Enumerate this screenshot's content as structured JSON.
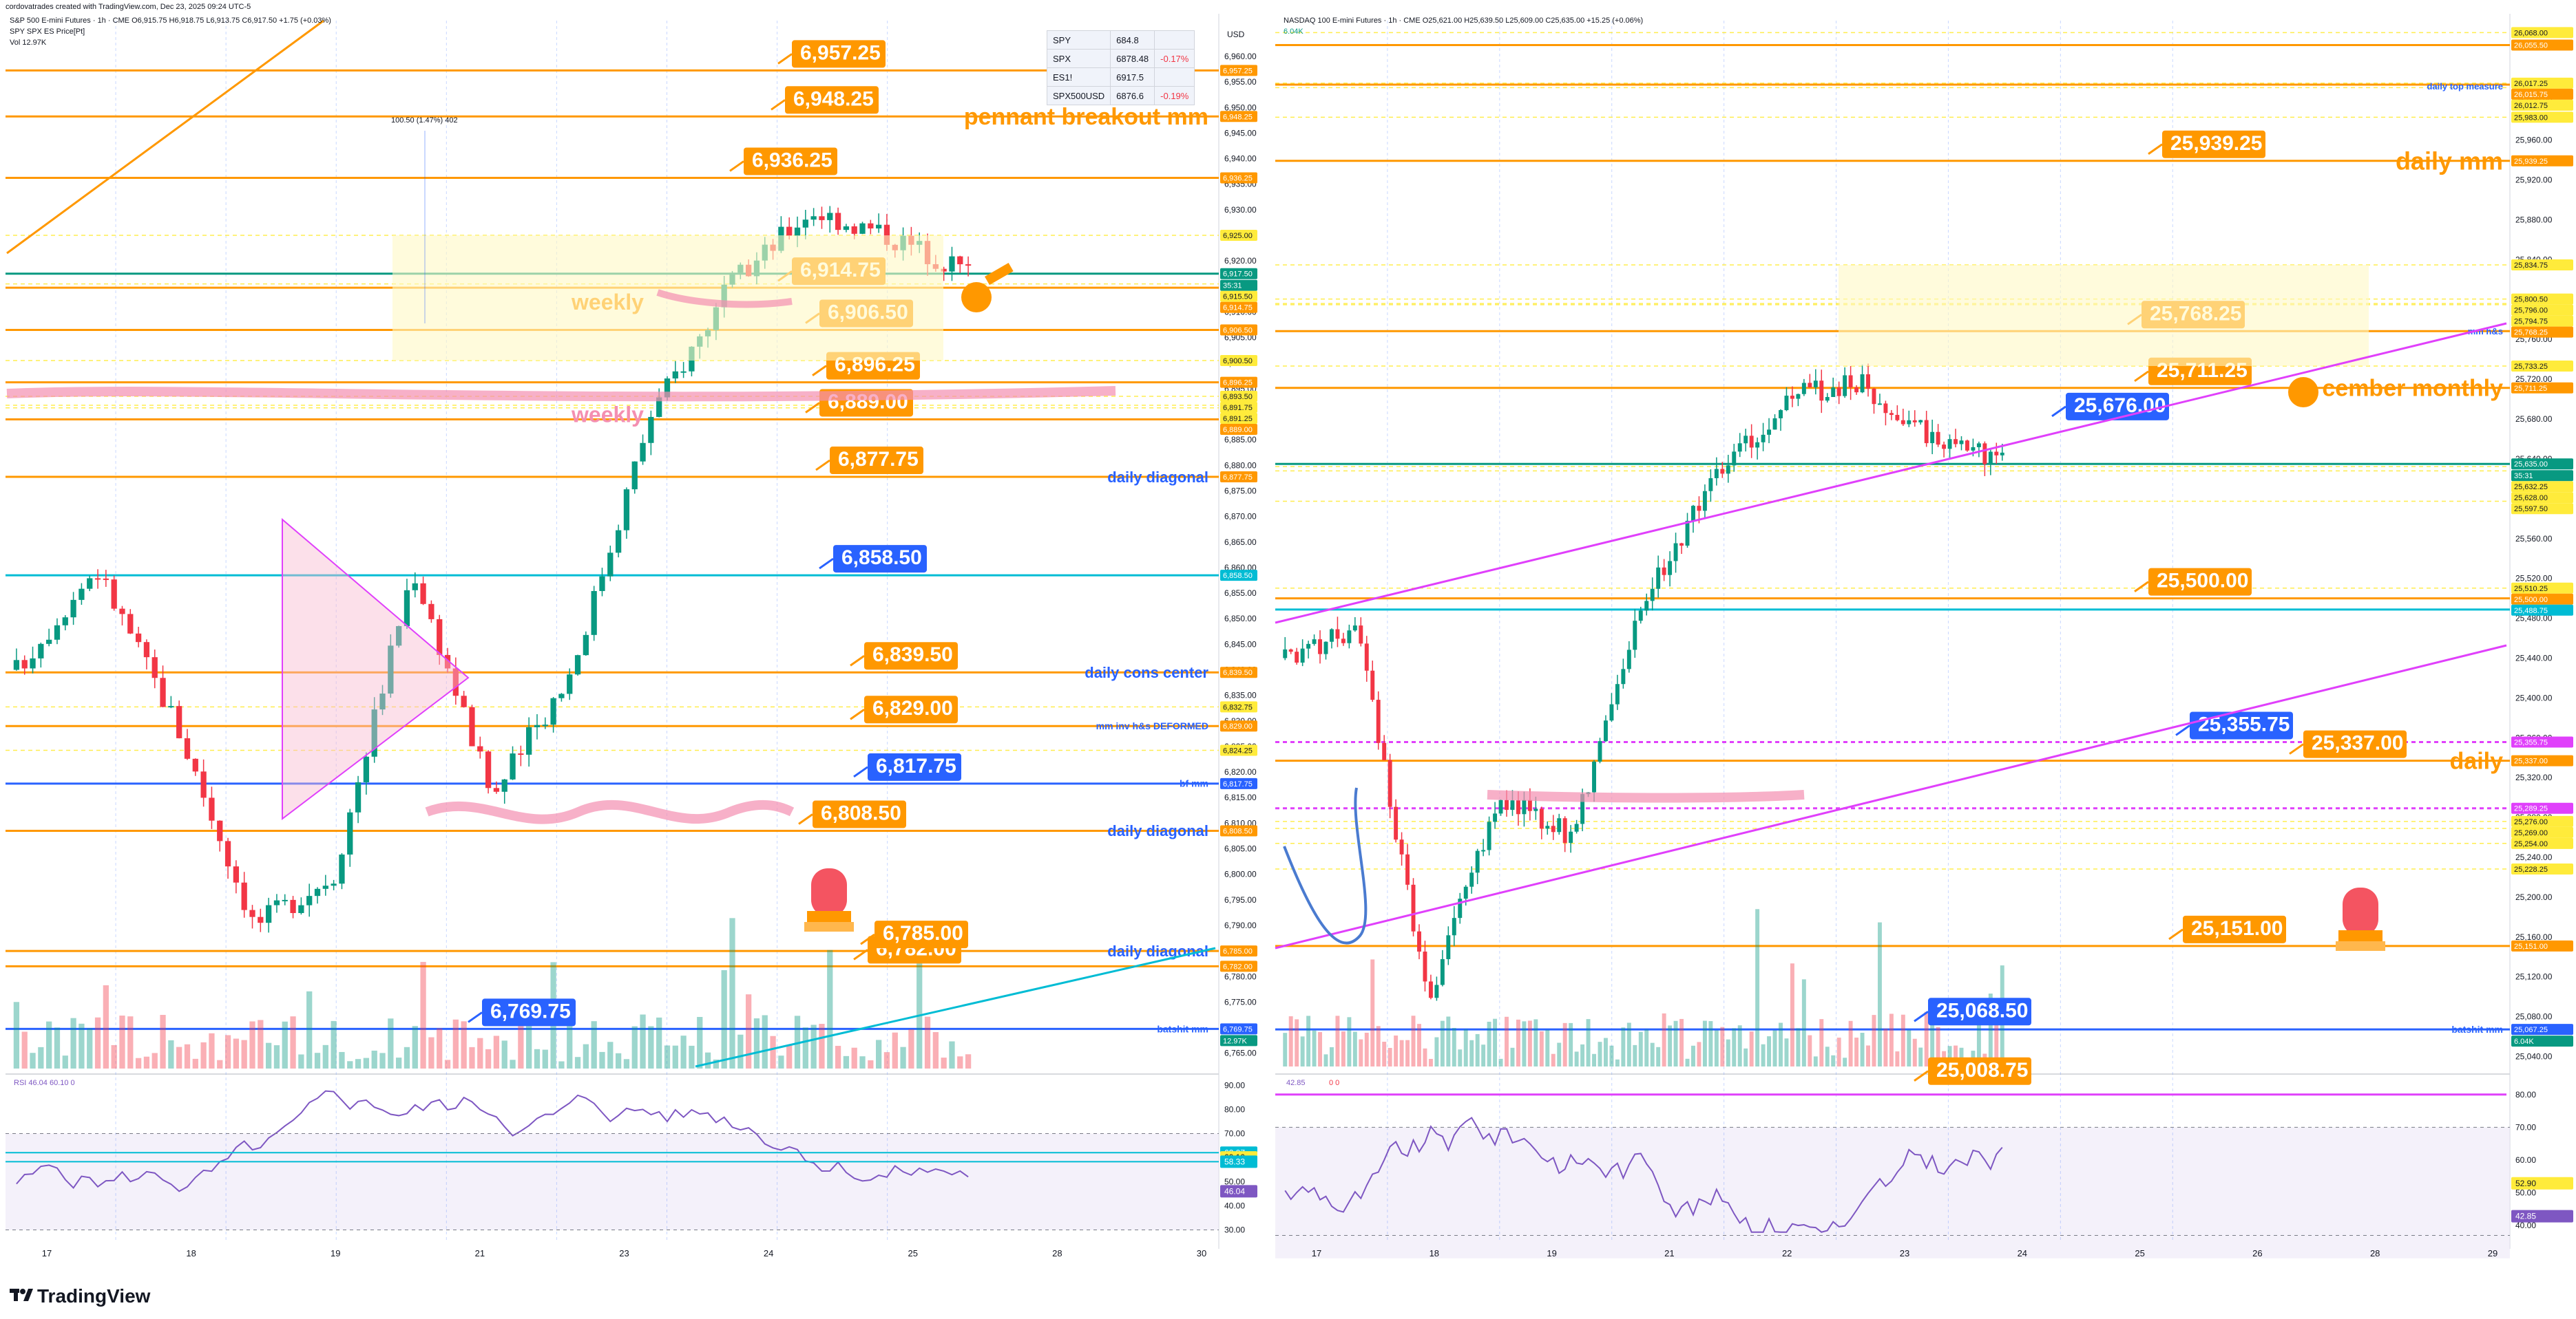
{
  "header": {
    "text": "cordovatrades created with TradingView.com, Dec 23, 2025 09:24 UTC-5"
  },
  "brand": {
    "logo": "TradingView"
  },
  "colors": {
    "orange": "#ff9800",
    "blue": "#2962ff",
    "teal": "#00bcd4",
    "magenta": "#e040fb",
    "pink": "#f48fb1",
    "green": "#089981",
    "red": "#f23645",
    "yellow": "#ffeb3b",
    "purple": "#7e57c2"
  },
  "left": {
    "symbol_line": "S&P 500 E-mini Futures · 1h · CME  O6,915.75 H6,918.75 L6,913.75 C6,917.50 +1.75 (+0.03%)",
    "line2": "SPY SPX ES Price[Pt]",
    "line3": "Vol 12.97K",
    "axis_title": "USD",
    "rsi_label": "RSI 46.04 60.10 0",
    "measure": "100.50 (1.47%) 402",
    "quote_rows": [
      {
        "sym": "SPY",
        "val": "684.8",
        "chg": ""
      },
      {
        "sym": "SPX",
        "val": "6878.48",
        "chg": "-0.17%"
      },
      {
        "sym": "ES1!",
        "val": "6917.5",
        "chg": ""
      },
      {
        "sym": "SPX500USD",
        "val": "6876.6",
        "chg": "-0.19%"
      }
    ],
    "price_ticks": [
      "6,965.00",
      "6,960.00",
      "6,955.00",
      "6,950.00",
      "6,945.00",
      "6,940.00",
      "6,935.00",
      "6,930.00",
      "6,925.00",
      "6,920.00",
      "6,915.00",
      "6,910.00",
      "6,905.00",
      "6,900.00",
      "6,895.00",
      "6,890.00",
      "6,885.00",
      "6,880.00",
      "6,875.00",
      "6,870.00",
      "6,865.00",
      "6,860.00",
      "6,855.00",
      "6,850.00",
      "6,845.00",
      "6,840.00",
      "6,835.00",
      "6,830.00",
      "6,825.00",
      "6,820.00",
      "6,815.00",
      "6,810.00",
      "6,805.00",
      "6,800.00",
      "6,795.00",
      "6,790.00",
      "6,785.00",
      "6,780.00",
      "6,775.00",
      "6,770.00",
      "6,765.00"
    ],
    "rsi_ticks": [
      "90.00",
      "80.00",
      "70.00",
      "60.00",
      "50.00",
      "40.00",
      "30.00"
    ],
    "rsi_badges": [
      {
        "text": "62.07",
        "color": "#00bcd4"
      },
      {
        "text": "60.10",
        "color": "#ffeb3b"
      },
      {
        "text": "58.33",
        "color": "#00bcd4"
      },
      {
        "text": "46.04",
        "color": "#7e57c2"
      }
    ],
    "time_ticks": [
      "17",
      "18",
      "19",
      "21",
      "23",
      "24",
      "25",
      "28",
      "30"
    ],
    "price_badges": [
      {
        "text": "6,957.25",
        "color": "#ff9800"
      },
      {
        "text": "6,948.25",
        "color": "#ff9800"
      },
      {
        "text": "6,936.25",
        "color": "#ff9800"
      },
      {
        "text": "6,925.00",
        "color": "#ffeb3b"
      },
      {
        "text": "6,917.50",
        "color": "#089981"
      },
      {
        "text": "35:31",
        "color": "#089981"
      },
      {
        "text": "6,915.50",
        "color": "#ffeb3b"
      },
      {
        "text": "6,914.75",
        "color": "#ff9800"
      },
      {
        "text": "6,906.50",
        "color": "#ff9800"
      },
      {
        "text": "6,900.50",
        "color": "#ffeb3b"
      },
      {
        "text": "6,896.25",
        "color": "#ff9800"
      },
      {
        "text": "6,893.50",
        "color": "#ffeb3b"
      },
      {
        "text": "6,891.75",
        "color": "#ffeb3b"
      },
      {
        "text": "6,891.25",
        "color": "#ffeb3b"
      },
      {
        "text": "6,889.00",
        "color": "#ff9800"
      },
      {
        "text": "6,877.75",
        "color": "#ff9800"
      },
      {
        "text": "6,858.50",
        "color": "#00bcd4"
      },
      {
        "text": "6,839.50",
        "color": "#ff9800"
      },
      {
        "text": "6,832.75",
        "color": "#ffeb3b"
      },
      {
        "text": "6,829.00",
        "color": "#ff9800"
      },
      {
        "text": "6,824.25",
        "color": "#ffeb3b"
      },
      {
        "text": "6,817.75",
        "color": "#2962ff"
      },
      {
        "text": "6,808.50",
        "color": "#ff9800"
      },
      {
        "text": "6,785.00",
        "color": "#ff9800"
      },
      {
        "text": "6,782.00",
        "color": "#ff9800"
      },
      {
        "text": "6,769.75",
        "color": "#2962ff"
      },
      {
        "text": "12.97K",
        "color": "#089981"
      }
    ],
    "callouts": [
      {
        "text": "6,957.25",
        "color": "#ff9800"
      },
      {
        "text": "6,948.25",
        "color": "#ff9800"
      },
      {
        "text": "6,936.25",
        "color": "#ff9800"
      },
      {
        "text": "6,914.75",
        "color": "#ff9800"
      },
      {
        "text": "6,906.50",
        "color": "#ff9800"
      },
      {
        "text": "6,896.25",
        "color": "#ff9800"
      },
      {
        "text": "6,889.00",
        "color": "#ff9800"
      },
      {
        "text": "6,877.75",
        "color": "#ff9800"
      },
      {
        "text": "6,858.50",
        "color": "#2962ff"
      },
      {
        "text": "6,839.50",
        "color": "#ff9800"
      },
      {
        "text": "6,829.00",
        "color": "#ff9800"
      },
      {
        "text": "6,817.75",
        "color": "#2962ff"
      },
      {
        "text": "6,808.50",
        "color": "#ff9800"
      },
      {
        "text": "6,782.00",
        "color": "#ff9800"
      },
      {
        "text": "6,785.00",
        "color": "#ff9800"
      },
      {
        "text": "6,769.75",
        "color": "#2962ff"
      }
    ],
    "labels": [
      {
        "text": "pennant breakout mm",
        "color": "#ff9800"
      },
      {
        "text": "weekly",
        "color": "#ff9800"
      },
      {
        "text": "weekly",
        "color": "#f48fb1"
      },
      {
        "text": "daily diagonal",
        "color": "#2962ff"
      },
      {
        "text": "daily cons center",
        "color": "#2962ff"
      },
      {
        "text": "mm inv h&s DEFORMED",
        "color": "#2962ff"
      },
      {
        "text": "bf mm",
        "color": "#2962ff"
      },
      {
        "text": "daily diagonal",
        "color": "#2962ff"
      },
      {
        "text": "daily diagonal",
        "color": "#2962ff"
      },
      {
        "text": "batshit mm",
        "color": "#2962ff"
      }
    ]
  },
  "right": {
    "symbol_line": "NASDAQ 100 E-mini Futures · 1h · CME  O25,621.00 H25,639.50 L25,609.00 C25,635.00 +15.25 (+0.06%)",
    "line2": "6.04K",
    "axis_title": "USD",
    "rsi_label": "42.85",
    "rsi_label2": "0  0",
    "price_ticks": [
      "26,000.00",
      "25,960.00",
      "25,920.00",
      "25,880.00",
      "25,840.00",
      "25,800.00",
      "25,760.00",
      "25,720.00",
      "25,680.00",
      "25,640.00",
      "25,600.00",
      "25,560.00",
      "25,520.00",
      "25,480.00",
      "25,440.00",
      "25,400.00",
      "25,360.00",
      "25,320.00",
      "25,280.00",
      "25,240.00",
      "25,200.00",
      "25,160.00",
      "25,120.00",
      "25,080.00",
      "25,040.00"
    ],
    "rsi_ticks": [
      "80.00",
      "70.00",
      "60.00",
      "50.00",
      "40.00"
    ],
    "rsi_badges": [
      {
        "text": "52.90",
        "color": "#ffeb3b"
      },
      {
        "text": "42.85",
        "color": "#7e57c2"
      }
    ],
    "time_ticks": [
      "17",
      "18",
      "19",
      "21",
      "22",
      "23",
      "24",
      "25",
      "26",
      "28",
      "29"
    ],
    "price_badges": [
      {
        "text": "26,068.00",
        "color": "#ffeb3b"
      },
      {
        "text": "26,055.50",
        "color": "#ff9800"
      },
      {
        "text": "26,017.25",
        "color": "#ffeb3b"
      },
      {
        "text": "26,015.75",
        "color": "#ff9800"
      },
      {
        "text": "26,012.75",
        "color": "#ffeb3b"
      },
      {
        "text": "25,983.00",
        "color": "#ffeb3b"
      },
      {
        "text": "25,939.25",
        "color": "#ff9800"
      },
      {
        "text": "25,834.75",
        "color": "#ffeb3b"
      },
      {
        "text": "25,800.50",
        "color": "#ffeb3b"
      },
      {
        "text": "25,796.00",
        "color": "#ffeb3b"
      },
      {
        "text": "25,794.75",
        "color": "#ffeb3b"
      },
      {
        "text": "25,768.25",
        "color": "#ff9800"
      },
      {
        "text": "25,733.25",
        "color": "#ffeb3b"
      },
      {
        "text": "25,711.25",
        "color": "#ff9800"
      },
      {
        "text": "25,635.00",
        "color": "#089981"
      },
      {
        "text": "35:31",
        "color": "#089981"
      },
      {
        "text": "25,632.25",
        "color": "#ffeb3b"
      },
      {
        "text": "25,628.00",
        "color": "#ffeb3b"
      },
      {
        "text": "25,597.50",
        "color": "#ffeb3b"
      },
      {
        "text": "25,510.25",
        "color": "#ffeb3b"
      },
      {
        "text": "25,500.00",
        "color": "#ff9800"
      },
      {
        "text": "25,488.75",
        "color": "#00bcd4"
      },
      {
        "text": "25,355.75",
        "color": "#e040fb"
      },
      {
        "text": "25,337.00",
        "color": "#ff9800"
      },
      {
        "text": "25,289.25",
        "color": "#e040fb"
      },
      {
        "text": "25,276.00",
        "color": "#ffeb3b"
      },
      {
        "text": "25,269.00",
        "color": "#ffeb3b"
      },
      {
        "text": "25,254.00",
        "color": "#ffeb3b"
      },
      {
        "text": "25,228.25",
        "color": "#ffeb3b"
      },
      {
        "text": "25,151.00",
        "color": "#ff9800"
      },
      {
        "text": "25,067.25",
        "color": "#2962ff"
      },
      {
        "text": "6.04K",
        "color": "#089981"
      }
    ],
    "callouts": [
      {
        "text": "25,939.25",
        "color": "#ff9800"
      },
      {
        "text": "25,768.25",
        "color": "#ff9800"
      },
      {
        "text": "25,711.25",
        "color": "#ff9800"
      },
      {
        "text": "25,676.00",
        "color": "#2962ff"
      },
      {
        "text": "25,500.00",
        "color": "#ff9800"
      },
      {
        "text": "25,355.75",
        "color": "#2962ff"
      },
      {
        "text": "25,337.00",
        "color": "#ff9800"
      },
      {
        "text": "25,151.00",
        "color": "#ff9800"
      },
      {
        "text": "25,068.50",
        "color": "#2962ff"
      },
      {
        "text": "25,008.75",
        "color": "#ff9800"
      }
    ],
    "labels": [
      {
        "text": "daily top measure",
        "color": "#2962ff"
      },
      {
        "text": "daily mm",
        "color": "#ff9800"
      },
      {
        "text": "mm h&s",
        "color": "#2962ff"
      },
      {
        "text": "cember monthly",
        "color": "#ff9800"
      },
      {
        "text": "daily",
        "color": "#ff9800"
      },
      {
        "text": "batshit mm",
        "color": "#2962ff"
      }
    ]
  }
}
